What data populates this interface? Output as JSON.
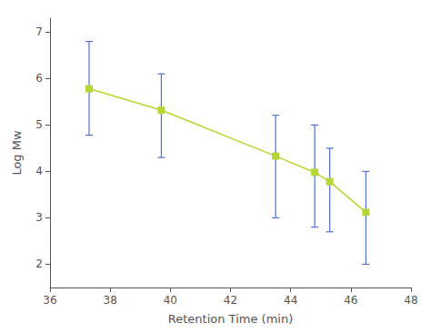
{
  "chart_data": {
    "type": "line",
    "x": [
      37.3,
      39.7,
      43.5,
      44.8,
      45.3,
      46.5
    ],
    "values": [
      5.78,
      5.32,
      4.33,
      3.98,
      3.78,
      3.12
    ],
    "yerr_upper": [
      1.02,
      0.78,
      0.88,
      1.02,
      0.72,
      0.88
    ],
    "yerr_lower": [
      1.0,
      1.02,
      1.33,
      1.18,
      1.08,
      1.12
    ],
    "xlabel": "Retention Time (min)",
    "ylabel": "Log Mw",
    "xlim": [
      36,
      48
    ],
    "ylim": [
      1.5,
      7.3
    ],
    "xticks": [
      36,
      38,
      40,
      42,
      44,
      46,
      48
    ],
    "yticks": [
      2,
      3,
      4,
      5,
      6,
      7
    ],
    "marker": "square",
    "line_style": "solid",
    "grid": false
  }
}
